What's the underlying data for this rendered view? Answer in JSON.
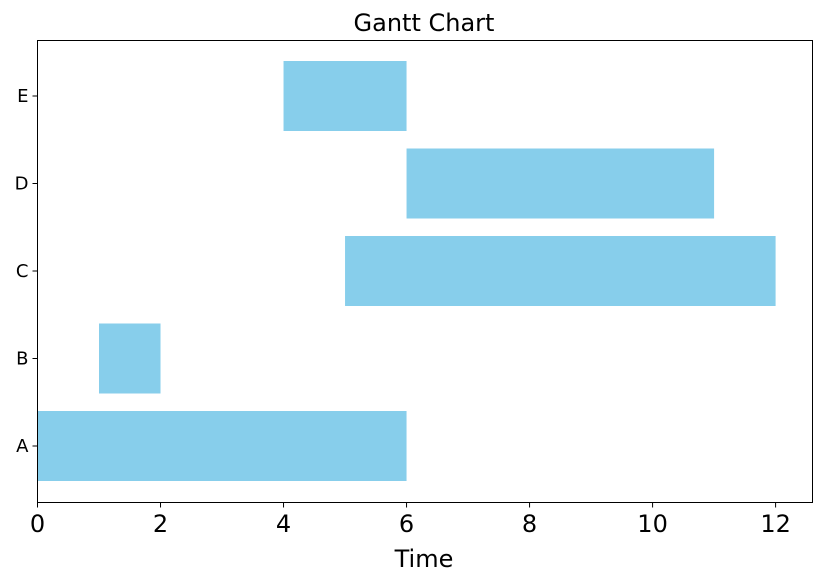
{
  "chart_data": {
    "type": "gantt",
    "title": "Gantt Chart",
    "xlabel": "Time",
    "ylabel": "",
    "xlim": [
      0,
      12.6
    ],
    "xticks": [
      0,
      2,
      4,
      6,
      8,
      10,
      12
    ],
    "grid": false,
    "bar_color": "#87CEEB",
    "tasks": [
      {
        "name": "A",
        "start": 0,
        "end": 6
      },
      {
        "name": "B",
        "start": 1,
        "end": 2
      },
      {
        "name": "C",
        "start": 5,
        "end": 12
      },
      {
        "name": "D",
        "start": 6,
        "end": 11
      },
      {
        "name": "E",
        "start": 4,
        "end": 6
      }
    ]
  }
}
